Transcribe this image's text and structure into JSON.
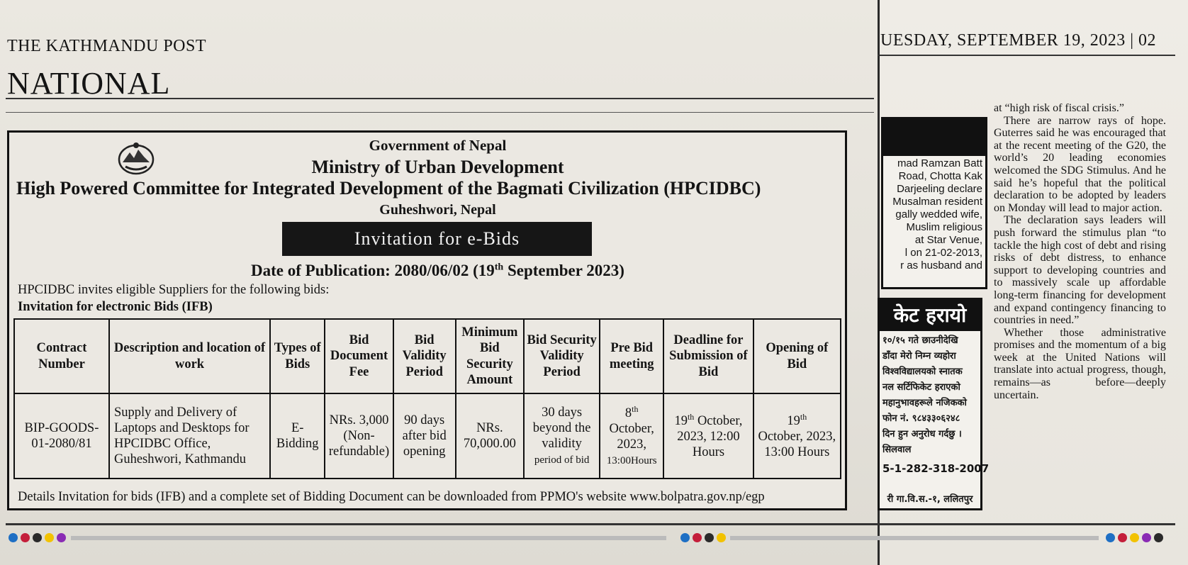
{
  "masthead": {
    "paper_name": "THE KATHMANDU POST",
    "section": "NATIONAL",
    "date_line": "UESDAY, SEPTEMBER 19, 2023 | 02"
  },
  "notice": {
    "gov": "Government of Nepal",
    "ministry": "Ministry of Urban Development",
    "committee": "High Powered Committee for Integrated Development of the Bagmati Civilization (HPCIDBC)",
    "location": "Guheshwori, Nepal",
    "title": "Invitation for e-Bids",
    "pub_date_prefix": "Date of Publication: 2080/06/02 (19",
    "pub_date_sup": "th",
    "pub_date_suffix": " September 2023)",
    "intro": "HPCIDBC invites eligible Suppliers for the following bids:",
    "ifb_heading": "Invitation for electronic Bids (IFB)",
    "table": {
      "headers": {
        "contract": "Contract Number",
        "desc": "Description and location of work",
        "type": "Types of Bids",
        "fee": "Bid Document Fee",
        "validity": "Bid Validity Period",
        "security": "Minimum Bid Security Amount",
        "sec_validity": "Bid Security Validity Period",
        "prebid": "Pre Bid meeting",
        "deadline": "Deadline for Submission of Bid",
        "opening": "Opening of Bid"
      },
      "row": {
        "contract": "BIP-GOODS-01-2080/81",
        "desc": "Supply and Delivery of Laptops and Desktops for HPCIDBC Office, Guheshwori, Kathmandu",
        "type": "E-Bidding",
        "fee": "NRs. 3,000 (Non-refundable)",
        "validity": "90 days after bid opening",
        "security": "NRs. 70,000.00",
        "sec_validity_main": "30 days beyond the validity",
        "sec_validity_small": "period of bid",
        "prebid_day": "8",
        "prebid_sup": "th",
        "prebid_rest": "October, 2023,",
        "prebid_time": "13:00Hours",
        "deadline_day": "19",
        "deadline_sup": "th",
        "deadline_rest": " October, 2023, 12:00 Hours",
        "opening_day": "19",
        "opening_sup": "th",
        "opening_rest": "October, 2023, 13:00 Hours"
      }
    },
    "footer": "Details Invitation for bids (IFB) and a complete set of Bidding Document can be downloaded from PPMO's website www.bolpatra.gov.np/egp"
  },
  "side_ad": {
    "lines": [
      "mad Ramzan Batt",
      "Road, Chotta Kak",
      "Darjeeling declare",
      "Musalman resident",
      "gally wedded wife,",
      "Muslim religious",
      "at Star Venue,",
      "l on 21-02-2013,",
      "r as husband and"
    ]
  },
  "lost_ad": {
    "heading": "केट हरायो",
    "lines": [
      "१०/१५ गते छाउनीदेखि",
      "डाँदा मेरो निम्न व्यहोरा",
      "विश्वविद्यालयको स्नातक",
      "नल सर्टिफिकेट हराएको",
      "महानुभावहरूले नजिकको",
      "फोन नं. ९८४३३०६२४८",
      "दिन हुन अनुरोध गर्दछु ।",
      "सिलवाल"
    ],
    "phone": "5-1-282-318-2007",
    "footer": "री गा.वि.स.-१, ललितपुर"
  },
  "article": {
    "p1": "at “high risk of fiscal crisis.”",
    "p2": "There are narrow rays of hope. Guterres said he was encouraged that at the recent meeting of the G20, the world’s 20 leading economies welcomed the SDG Stimulus. And he said he’s hopeful that the political declaration to be adopted by leaders on Monday will lead to major action.",
    "p3": "The declaration says leaders will push forward the stimulus plan “to tackle the high cost of debt and rising risks of debt distress, to enhance support to developing countries and to massively scale up affordable long-term financing for development and expand contingency financing to countries in need.”",
    "p4": "Whether those administrative promises and the momentum of a big week at the United Nations will translate into actual progress, though, remains—as before—deeply uncertain."
  },
  "colors": {
    "ink": "#141414",
    "paper": "#e6e3dc",
    "title_bar": "#161616",
    "dot_colors": [
      "#1e6fc4",
      "#c41e3a",
      "#2a2a2a",
      "#f2c200",
      "#8a2bb4"
    ]
  }
}
